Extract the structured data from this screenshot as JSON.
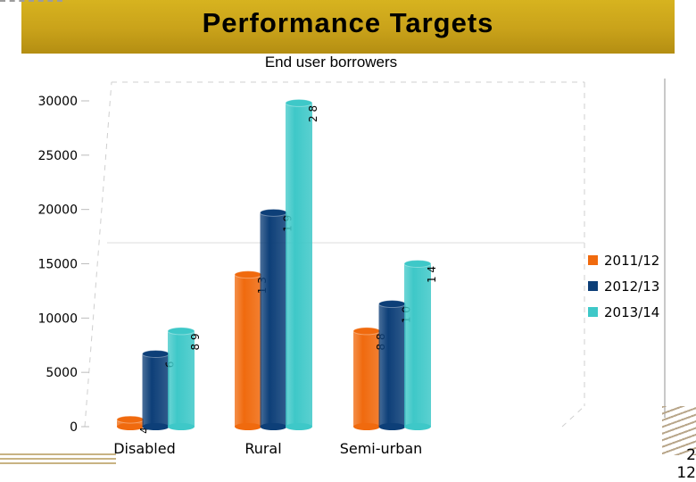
{
  "slide": {
    "title": "Performance Targets",
    "page_number_lines": [
      "2",
      "12"
    ]
  },
  "chart_data": {
    "type": "bar",
    "title": "End user borrowers",
    "xlabel": "",
    "ylabel": "",
    "categories": [
      "Disabled",
      "Rural",
      "Semi-urban"
    ],
    "series": [
      {
        "name": "2011/12",
        "color": "#f06a0e",
        "values": [
          650,
          14000,
          8800
        ]
      },
      {
        "name": "2012/13",
        "color": "#0d3f78",
        "values": [
          6700,
          19700,
          11300
        ]
      },
      {
        "name": "2013/14",
        "color": "#3ec8c8",
        "values": [
          8800,
          29800,
          15000
        ]
      }
    ],
    "data_labels": [
      [
        "4",
        "6",
        "8 9"
      ],
      [
        "1 3",
        "1 9",
        "2 8"
      ],
      [
        "8 8",
        "1 0",
        "1 4"
      ]
    ],
    "ylim": [
      0,
      30000
    ],
    "yticks": [
      "0",
      "5000",
      "10000",
      "15000",
      "20000",
      "25000",
      "30000"
    ],
    "legend_position": "right",
    "grid": false
  }
}
